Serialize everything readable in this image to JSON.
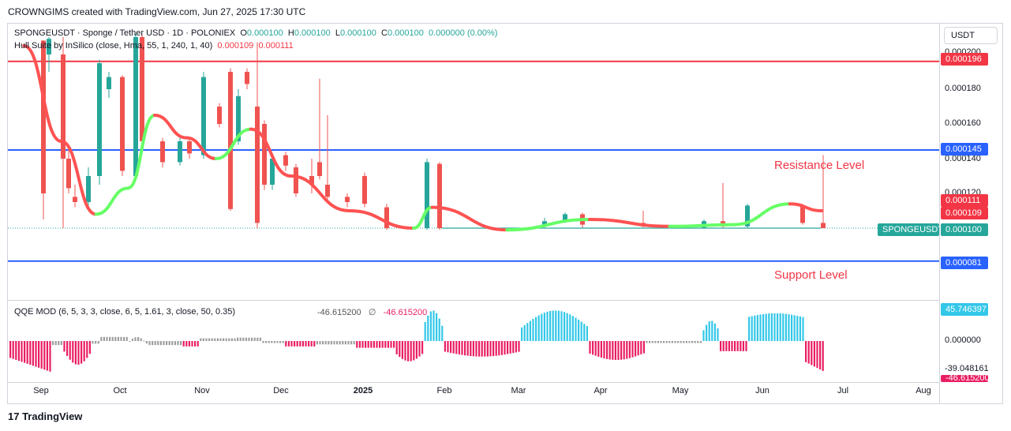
{
  "header": "CROWNGIMS created with TradingView.com, Jun 27, 2025 17:30 UTC",
  "legend": {
    "symbol": "SPONGEUSDT · Sponge / Tether USD · 1D · POLONIEX",
    "o_label": "O",
    "o_value": "0.000100",
    "h_label": "H",
    "h_value": "0.000100",
    "l_label": "L",
    "l_value": "0.000100",
    "c_label": "C",
    "c_value": "0.000100",
    "change": "0.000000 (0.00%)",
    "indicator": "Hull Suite by InSilico (close, Hma, 55, 1, 240, 1, 40)",
    "ind_v1": "0.000109",
    "ind_v2": "0.000111"
  },
  "currency": "USDT",
  "annotations": {
    "resistance": "Resistance Level",
    "support": "Support Level"
  },
  "price_ticks": [
    "0.000200",
    "0.000180",
    "0.000160",
    "0.000140",
    "0.000120"
  ],
  "badges": {
    "resistance_top": "0.000196",
    "resistance": "0.000145",
    "hull_a": "0.000111",
    "hull_b": "0.000109",
    "symbol_tag": "SPONGEUSDT",
    "last": "0.000100",
    "support": "0.000081"
  },
  "qqe": {
    "label": "QQE MOD (6, 5, 3, 3, close, 6, 5, 1.61, 3, close, 50, 0.35)",
    "v1": "-46.615200",
    "sym": "∅",
    "v2": "-46.615200",
    "ticks": [
      "45.746397",
      "0.000000",
      "-39.048161",
      "-46.615200"
    ]
  },
  "time_labels": [
    "Sep",
    "Oct",
    "Nov",
    "Dec",
    "2025",
    "Feb",
    "Mar",
    "Apr",
    "May",
    "Jun",
    "Jul",
    "Aug"
  ],
  "colors": {
    "up": "#26a69a",
    "down": "#ef5350",
    "hull_up": "#66ff66",
    "hull_down": "#ff5252",
    "resistance": "#f23645",
    "support": "#2962ff",
    "qqe_up": "#33c7e8",
    "qqe_down": "#e91e63",
    "qqe_neutral": "#9e9e9e"
  },
  "chart_data": {
    "type": "candlestick",
    "x_range": [
      "Sep 2024",
      "Aug 2025"
    ],
    "ylim": [
      7e-05,
      0.00021
    ],
    "horizontal_lines": [
      {
        "name": "Resistance",
        "value": 0.000196,
        "color": "#f23645"
      },
      {
        "name": "Resistance Level",
        "value": 0.000145,
        "color": "#2962ff"
      },
      {
        "name": "Support Level",
        "value": 8.1e-05,
        "color": "#2962ff"
      }
    ],
    "last_close": 0.0001,
    "hull": [
      {
        "date": "2024-09-01",
        "value": 0.000205
      },
      {
        "date": "2024-09-15",
        "value": 0.00015
      },
      {
        "date": "2024-09-28",
        "value": 0.000108
      },
      {
        "date": "2024-10-10",
        "value": 0.000123
      },
      {
        "date": "2024-10-20",
        "value": 0.000165
      },
      {
        "date": "2024-11-01",
        "value": 0.000152
      },
      {
        "date": "2024-11-12",
        "value": 0.00014
      },
      {
        "date": "2024-11-25",
        "value": 0.000157
      },
      {
        "date": "2024-12-10",
        "value": 0.00013
      },
      {
        "date": "2025-01-01",
        "value": 0.00011
      },
      {
        "date": "2025-01-25",
        "value": 0.0001
      },
      {
        "date": "2025-02-01",
        "value": 0.000112
      },
      {
        "date": "2025-03-01",
        "value": 9.9e-05
      },
      {
        "date": "2025-04-01",
        "value": 0.000105
      },
      {
        "date": "2025-05-01",
        "value": 0.000101
      },
      {
        "date": "2025-05-25",
        "value": 0.000102
      },
      {
        "date": "2025-06-15",
        "value": 0.000114
      },
      {
        "date": "2025-06-27",
        "value": 0.00011
      }
    ],
    "qqe_range": [
      -46.6152,
      45.746397
    ]
  }
}
